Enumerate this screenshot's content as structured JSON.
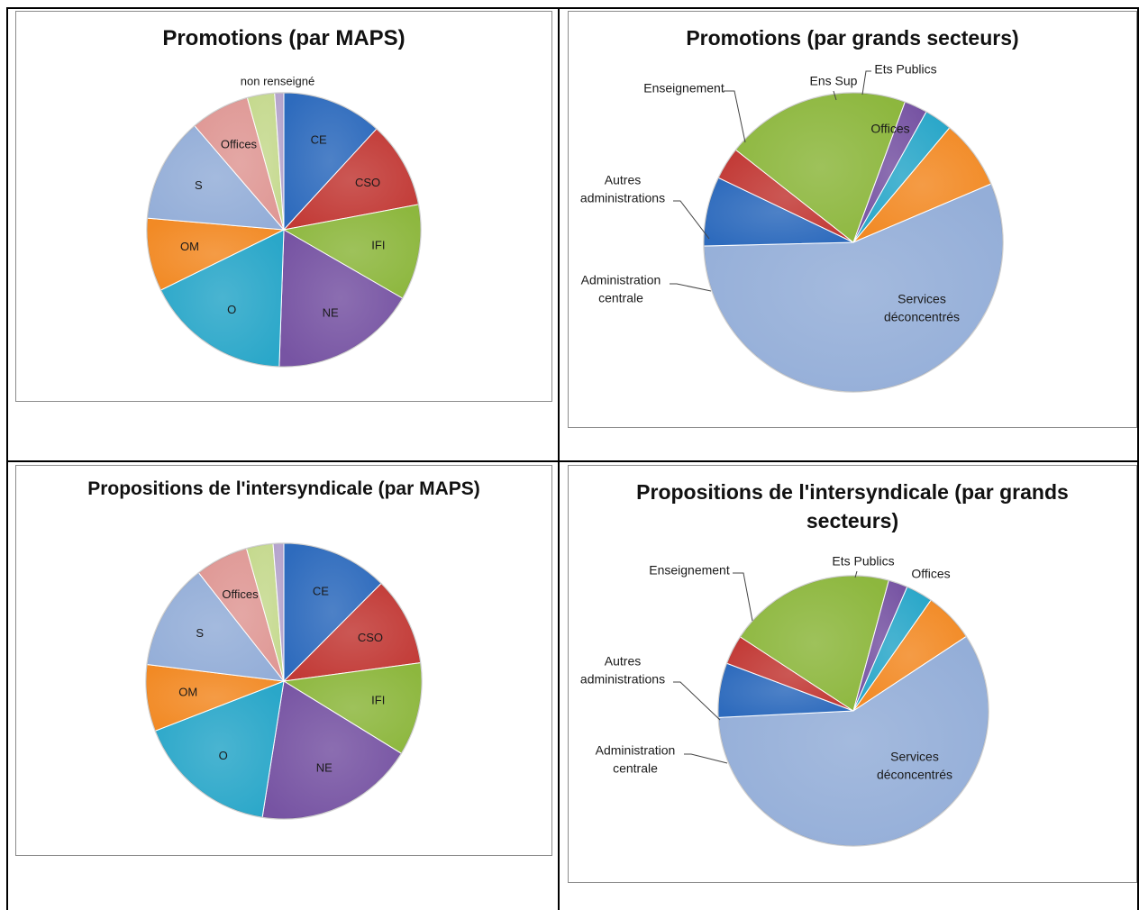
{
  "chart_data": [
    {
      "type": "pie",
      "title": "Promotions  (par MAPS)",
      "categories": [
        "CE",
        "CSO",
        "IFI",
        "NE",
        "O",
        "OM",
        "S",
        "Offices",
        "",
        "non renseigné"
      ],
      "values": [
        11,
        9.5,
        10.5,
        16,
        16,
        8,
        11.5,
        6.5,
        3,
        1
      ],
      "colors": [
        "#2e6bbd",
        "#c23a36",
        "#8db73e",
        "#7754a3",
        "#2aa7c9",
        "#f28a25",
        "#94aed8",
        "#df9895",
        "#c5d98e",
        "#b4a3cc"
      ],
      "label_inside": [
        true,
        true,
        true,
        true,
        true,
        true,
        true,
        true,
        false,
        false
      ],
      "outside_labels": [
        {
          "text": "non renseigné",
          "index": 9
        }
      ]
    },
    {
      "type": "pie",
      "title": "Promotions (par grands secteurs)",
      "categories": [
        "Offices",
        "Services déconcentrés",
        "Administration centrale",
        "Autres administrations",
        "Enseignement",
        "Ens Sup",
        "Ets Publics"
      ],
      "values": [
        7.5,
        56,
        7.5,
        3.5,
        20,
        2.5,
        3
      ],
      "colors": [
        "#f28a25",
        "#94aed8",
        "#2e6bbd",
        "#c23a36",
        "#8db73e",
        "#7754a3",
        "#2aa7c9"
      ],
      "inside_labels": [
        "Offices",
        "Services déconcentrés"
      ]
    },
    {
      "type": "pie",
      "title": "Propositions de l'intersyndicale (par MAPS)",
      "categories": [
        "CE",
        "CSO",
        "IFI",
        "NE",
        "O",
        "OM",
        "S",
        "Offices",
        "",
        ""
      ],
      "values": [
        12,
        10,
        10.5,
        18,
        16,
        7.5,
        12,
        6,
        3,
        1.2
      ],
      "colors": [
        "#2e6bbd",
        "#c23a36",
        "#8db73e",
        "#7754a3",
        "#2aa7c9",
        "#f28a25",
        "#94aed8",
        "#df9895",
        "#c5d98e",
        "#b4a3cc"
      ],
      "label_inside": [
        true,
        true,
        true,
        true,
        true,
        true,
        true,
        true,
        false,
        false
      ]
    },
    {
      "type": "pie",
      "title": "Propositions de l'intersyndicale (par grands secteurs)",
      "categories": [
        "Offices",
        "Services déconcentrés",
        "Administration centrale",
        "Autres administrations",
        "Enseignement",
        "",
        "Ets Publics"
      ],
      "values": [
        6,
        58.5,
        6.5,
        3.5,
        20,
        2.3,
        3.2
      ],
      "colors": [
        "#f28a25",
        "#94aed8",
        "#2e6bbd",
        "#c23a36",
        "#8db73e",
        "#7754a3",
        "#2aa7c9"
      ],
      "inside_labels": [
        "Services déconcentrés"
      ]
    }
  ],
  "titles": {
    "p1": "Promotions  (par MAPS)",
    "p2": "Promotions (par grands secteurs)",
    "p3": "Propositions de l'intersyndicale (par MAPS)",
    "p4_line1": "Propositions de l'intersyndicale (par grands",
    "p4_line2": "secteurs)"
  },
  "labels": {
    "p2": {
      "enseignement": "Enseignement",
      "ens_sup": "Ens Sup",
      "ets_publics": "Ets Publics",
      "offices": "Offices",
      "autres_1": "Autres",
      "autres_2": "administrations",
      "admin_1": "Administration",
      "admin_2": "centrale",
      "services_1": "Services",
      "services_2": "déconcentrés"
    },
    "p4": {
      "enseignement": "Enseignement",
      "ets_publics": "Ets Publics",
      "offices": "Offices",
      "autres_1": "Autres",
      "autres_2": "administrations",
      "admin_1": "Administration",
      "admin_2": "centrale",
      "services_1": "Services",
      "services_2": "déconcentrés"
    }
  }
}
